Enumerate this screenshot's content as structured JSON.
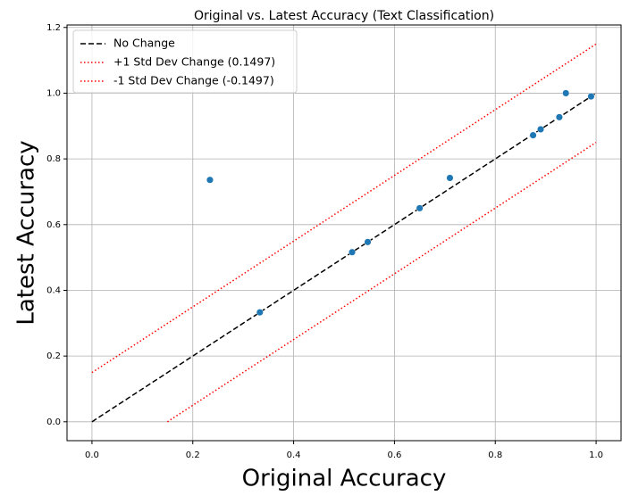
{
  "chart_data": {
    "type": "scatter",
    "title": "Original vs. Latest Accuracy (Text Classification)",
    "xlabel": "Original Accuracy",
    "ylabel": "Latest Accuracy",
    "xlim": [
      -0.0495,
      1.0495
    ],
    "ylim": [
      -0.0575,
      1.2075
    ],
    "xticks": [
      {
        "value": 0,
        "label": "0.0"
      },
      {
        "value": 0.2,
        "label": "0.2"
      },
      {
        "value": 0.4,
        "label": "0.4"
      },
      {
        "value": 0.6,
        "label": "0.6"
      },
      {
        "value": 0.8,
        "label": "0.8"
      },
      {
        "value": 1,
        "label": "1.0"
      }
    ],
    "yticks": [
      {
        "value": 0,
        "label": "0.0"
      },
      {
        "value": 0.2,
        "label": "0.2"
      },
      {
        "value": 0.4,
        "label": "0.4"
      },
      {
        "value": 0.6,
        "label": "0.6"
      },
      {
        "value": 0.8,
        "label": "0.8"
      },
      {
        "value": 1,
        "label": "1.0"
      },
      {
        "value": 1.2,
        "label": "1.2"
      }
    ],
    "grid": true,
    "legend": "upper left",
    "points": {
      "color": "#1f77b4",
      "x": [
        0.234,
        0.333,
        0.516,
        0.547,
        0.65,
        0.71,
        0.875,
        0.89,
        0.927,
        0.94,
        0.99
      ],
      "y": [
        0.736,
        0.333,
        0.516,
        0.547,
        0.65,
        0.742,
        0.872,
        0.89,
        0.927,
        1.0,
        0.99
      ]
    },
    "lines": [
      {
        "name": "No Change",
        "color": "#000000",
        "style": "dashed",
        "x": [
          0,
          1
        ],
        "y": [
          0,
          1
        ]
      },
      {
        "name": "+1 Std Dev Change (0.1497)",
        "color": "#ff0000",
        "style": "dotted",
        "x": [
          0,
          1
        ],
        "y": [
          0.1497,
          1.1497
        ]
      },
      {
        "name": "-1 Std Dev Change (-0.1497)",
        "color": "#ff0000",
        "style": "dotted",
        "x": [
          0.1497,
          1
        ],
        "y": [
          0,
          0.8503
        ]
      }
    ]
  }
}
